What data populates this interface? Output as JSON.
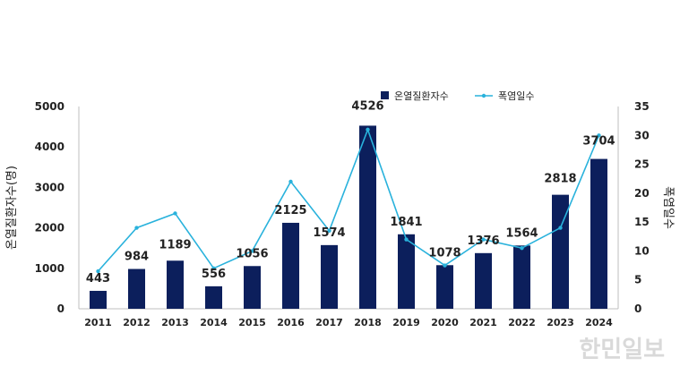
{
  "chart_data": {
    "type": "bar",
    "categories": [
      "2011",
      "2012",
      "2013",
      "2014",
      "2015",
      "2016",
      "2017",
      "2018",
      "2019",
      "2020",
      "2021",
      "2022",
      "2023",
      "2024"
    ],
    "series": [
      {
        "name": "온열질환자수",
        "type": "bar",
        "axis": "left",
        "values": [
          443,
          984,
          1189,
          556,
          1056,
          2125,
          1574,
          4526,
          1841,
          1078,
          1376,
          1564,
          2818,
          3704
        ]
      },
      {
        "name": "폭염일수",
        "type": "line",
        "axis": "right",
        "values": [
          6.5,
          14,
          16.5,
          7,
          10,
          22,
          13.5,
          31,
          12,
          7.5,
          12,
          10.5,
          14,
          30
        ]
      }
    ],
    "data_labels": [
      "443",
      "984",
      "1189",
      "556",
      "1056",
      "2125",
      "1574",
      "4526",
      "1841",
      "1078",
      "1376",
      "1564",
      "2818",
      "3704"
    ],
    "ylabel_left": "온열질환자수(명)",
    "ylabel_right": "폭염일수",
    "ylim_left": [
      0,
      5000
    ],
    "ylim_right": [
      0,
      35
    ],
    "yticks_left": [
      "0",
      "1000",
      "2000",
      "3000",
      "4000",
      "5000"
    ],
    "yticks_right": [
      "0",
      "5",
      "10",
      "15",
      "20",
      "25",
      "30",
      "35"
    ],
    "legend_position": "top-center",
    "grid": false,
    "colors": {
      "bar": "#0c1f5c",
      "line": "#29b2dc"
    }
  },
  "watermark": "한민일보"
}
